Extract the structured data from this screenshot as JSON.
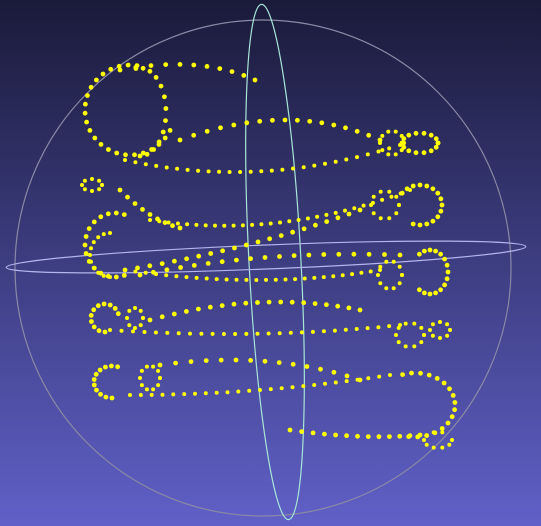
{
  "viewer": {
    "background_top": "#1a1a3a",
    "background_bottom": "#6060c8",
    "point_color": "#ffff00",
    "trackball_sphere_color": "#8a8aa6",
    "trackball_vertical_ring_color": "#a8e6d8",
    "trackball_horizontal_ring_color": "#b4b4ee"
  },
  "scene": {
    "object": "point-cloud",
    "description_icon": "point-cloud-icon",
    "layers": 5
  }
}
